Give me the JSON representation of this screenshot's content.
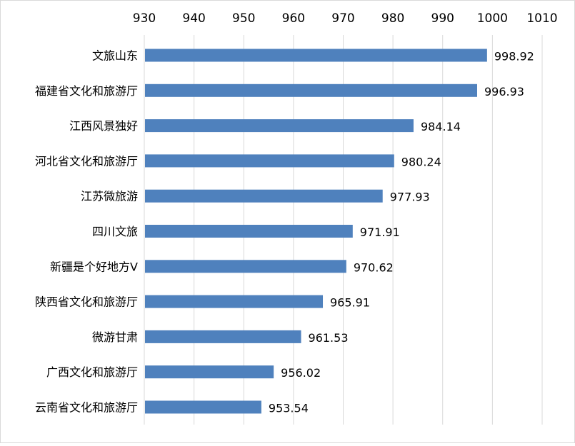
{
  "chart_data": {
    "type": "bar",
    "orientation": "horizontal",
    "categories": [
      "文旅山东",
      "福建省文化和旅游厅",
      "江西风景独好",
      "河北省文化和旅游厅",
      "江苏微旅游",
      "四川文旅",
      "新疆是个好地方V",
      "陕西省文化和旅游厅",
      "微游甘肃",
      "广西文化和旅游厅",
      "云南省文化和旅游厅"
    ],
    "series": [
      {
        "values": [
          998.92,
          996.93,
          984.14,
          980.24,
          977.93,
          971.91,
          970.62,
          965.91,
          961.53,
          956.02,
          953.54
        ],
        "value_labels": [
          "998.92",
          "996.93",
          "984.14",
          "980.24",
          "977.93",
          "971.91",
          "970.62",
          "965.91",
          "961.53",
          "956.02",
          "953.54"
        ]
      }
    ],
    "x_ticks": [
      "930",
      "940",
      "950",
      "960",
      "970",
      "980",
      "990",
      "1000",
      "1010"
    ],
    "xlim": [
      930,
      1010
    ],
    "axis_position": "top",
    "grid": true,
    "legend": "none",
    "colors": {
      "bar": "#4f81bd",
      "grid": "#d9d9d9"
    }
  }
}
